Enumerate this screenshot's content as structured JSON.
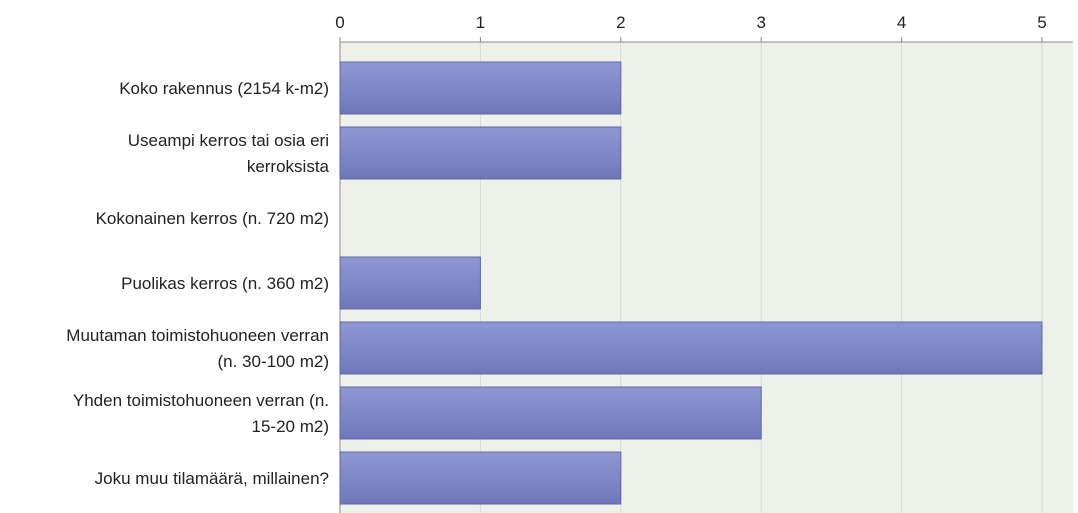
{
  "chart_data": {
    "type": "bar",
    "orientation": "horizontal",
    "categories": [
      "Koko rakennus (2154 k-m2)",
      "Useampi kerros tai osia eri kerroksista",
      "Kokonainen kerros (n. 720 m2)",
      "Puolikas kerros (n. 360 m2)",
      "Muutaman toimistohuoneen verran (n. 30-100 m2)",
      "Yhden toimistohuoneen verran (n. 15-20 m2)",
      "Joku muu tilamäärä, millainen?"
    ],
    "category_lines": [
      [
        "Koko rakennus (2154 k-m2)"
      ],
      [
        "Useampi kerros tai osia eri",
        "kerroksista"
      ],
      [
        "Kokonainen kerros (n. 720 m2)"
      ],
      [
        "Puolikas kerros (n. 360 m2)"
      ],
      [
        "Muutaman toimistohuoneen verran",
        "(n. 30-100 m2)"
      ],
      [
        "Yhden toimistohuoneen verran (n.",
        "15-20 m2)"
      ],
      [
        "Joku muu tilamäärä, millainen?"
      ]
    ],
    "values": [
      2,
      2,
      0,
      1,
      5,
      3,
      2
    ],
    "xlim": [
      0,
      5
    ],
    "ticks": [
      "0",
      "1",
      "2",
      "3",
      "4",
      "5"
    ],
    "axis_position": "top",
    "grid": true,
    "colors": {
      "bar": "#7d86c6",
      "bar_edge": "#5e67a8",
      "plot_bg": "#eef0ea",
      "grid": "#d8dbd4",
      "axis": "#888888"
    }
  }
}
